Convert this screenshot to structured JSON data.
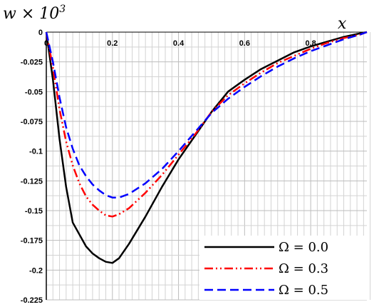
{
  "chart_data": {
    "type": "line",
    "xlabel": "x",
    "ylabel_main": "w × 10",
    "ylabel_exp": "3",
    "xlim": [
      0,
      0.97
    ],
    "ylim": [
      -0.225,
      0
    ],
    "x_ticks": [
      {
        "value": 0,
        "label": "0"
      },
      {
        "value": 0.2,
        "label": "0.2"
      },
      {
        "value": 0.4,
        "label": "0.4"
      },
      {
        "value": 0.6,
        "label": "0.6"
      },
      {
        "value": 0.8,
        "label": "0.8"
      }
    ],
    "y_ticks": [
      {
        "value": 0,
        "label": "0"
      },
      {
        "value": -0.025,
        "label": "-0.025"
      },
      {
        "value": -0.05,
        "label": "-0.05"
      },
      {
        "value": -0.075,
        "label": "-0.075"
      },
      {
        "value": -0.1,
        "label": "-0.1"
      },
      {
        "value": -0.125,
        "label": "-0.125"
      },
      {
        "value": -0.15,
        "label": "-0.15"
      },
      {
        "value": -0.175,
        "label": "-0.175"
      },
      {
        "value": -0.2,
        "label": "-0.2"
      },
      {
        "value": -0.225,
        "label": "-0.225"
      }
    ],
    "grid": true,
    "legend_position": "bottom-right",
    "series": [
      {
        "name": "Ω = 0.0",
        "color": "#000000",
        "dash": "solid",
        "x": [
          0,
          0.02,
          0.04,
          0.06,
          0.08,
          0.1,
          0.12,
          0.14,
          0.16,
          0.18,
          0.2,
          0.22,
          0.25,
          0.3,
          0.35,
          0.4,
          0.45,
          0.5,
          0.55,
          0.6,
          0.65,
          0.7,
          0.75,
          0.8,
          0.85,
          0.9,
          0.95,
          0.97
        ],
        "y": [
          0,
          -0.04,
          -0.09,
          -0.13,
          -0.16,
          -0.17,
          -0.18,
          -0.186,
          -0.19,
          -0.193,
          -0.194,
          -0.19,
          -0.178,
          -0.155,
          -0.13,
          -0.107,
          -0.087,
          -0.067,
          -0.05,
          -0.04,
          -0.031,
          -0.024,
          -0.017,
          -0.012,
          -0.008,
          -0.004,
          -0.001,
          0
        ]
      },
      {
        "name": "Ω = 0.3",
        "color": "#ff0000",
        "dash": "dash-dot-dot",
        "x": [
          0,
          0.02,
          0.04,
          0.06,
          0.08,
          0.1,
          0.12,
          0.14,
          0.16,
          0.18,
          0.2,
          0.22,
          0.25,
          0.3,
          0.35,
          0.4,
          0.45,
          0.5,
          0.55,
          0.6,
          0.65,
          0.7,
          0.75,
          0.8,
          0.85,
          0.9,
          0.95,
          0.97
        ],
        "y": [
          0,
          -0.03,
          -0.065,
          -0.092,
          -0.112,
          -0.127,
          -0.138,
          -0.145,
          -0.15,
          -0.154,
          -0.155,
          -0.153,
          -0.148,
          -0.135,
          -0.12,
          -0.103,
          -0.086,
          -0.067,
          -0.053,
          -0.043,
          -0.034,
          -0.026,
          -0.02,
          -0.014,
          -0.009,
          -0.005,
          -0.002,
          0
        ]
      },
      {
        "name": "Ω = 0.5",
        "color": "#0000ff",
        "dash": "dashed",
        "x": [
          0,
          0.02,
          0.04,
          0.06,
          0.08,
          0.1,
          0.12,
          0.14,
          0.16,
          0.18,
          0.2,
          0.22,
          0.25,
          0.3,
          0.35,
          0.4,
          0.45,
          0.5,
          0.55,
          0.6,
          0.65,
          0.7,
          0.75,
          0.8,
          0.85,
          0.9,
          0.95,
          0.97
        ],
        "y": [
          0,
          -0.025,
          -0.055,
          -0.08,
          -0.098,
          -0.112,
          -0.121,
          -0.128,
          -0.133,
          -0.137,
          -0.139,
          -0.139,
          -0.136,
          -0.127,
          -0.115,
          -0.1,
          -0.084,
          -0.068,
          -0.056,
          -0.046,
          -0.037,
          -0.029,
          -0.022,
          -0.016,
          -0.011,
          -0.006,
          -0.002,
          0
        ]
      }
    ]
  }
}
